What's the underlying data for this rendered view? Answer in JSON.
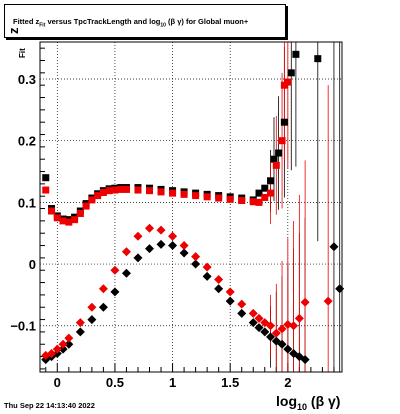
{
  "header": {
    "title_prefix": "Fitted  z",
    "title_sub": "Fit",
    "title_mid": "  versus TpcTrackLength and log",
    "title_sub2": "10",
    "title_suffix": "(β  γ) for Global muon+"
  },
  "footer": {
    "timestamp": "Thu Sep 22 14:13:40 2022"
  },
  "chart_data": {
    "type": "scatter",
    "title": "Fitted z_Fit versus TpcTrackLength and log10(β γ) for Global muon+",
    "xlabel": "log10(β γ)",
    "ylabel": "z_Fit",
    "xlim": [
      -0.15,
      2.47
    ],
    "ylim": [
      -0.175,
      0.36
    ],
    "x_ticks": [
      "0",
      "0.5",
      "1",
      "1.5",
      "2"
    ],
    "y_ticks": [
      "−0.1",
      "0",
      "0.1",
      "0.2",
      "0.3"
    ],
    "grid": true,
    "colors": {
      "black": "#000000",
      "red": "#ee0000"
    },
    "series": [
      {
        "color": "black",
        "band": "upper",
        "x": [
          -0.1,
          -0.05,
          0.0,
          0.05,
          0.1,
          0.15,
          0.2,
          0.25,
          0.3,
          0.35,
          0.4,
          0.45,
          0.5,
          0.55,
          0.6,
          0.7,
          0.8,
          0.9,
          1.0,
          1.1,
          1.2,
          1.3,
          1.4,
          1.5,
          1.6,
          1.7,
          1.75,
          1.8,
          1.85,
          1.88,
          1.92,
          1.97,
          2.03,
          2.07,
          2.26
        ],
        "y": [
          0.14,
          0.09,
          0.078,
          0.073,
          0.072,
          0.076,
          0.086,
          0.098,
          0.107,
          0.114,
          0.119,
          0.122,
          0.123,
          0.124,
          0.124,
          0.124,
          0.123,
          0.121,
          0.119,
          0.117,
          0.115,
          0.113,
          0.111,
          0.109,
          0.107,
          0.104,
          0.115,
          0.123,
          0.135,
          0.17,
          0.18,
          0.23,
          0.31,
          0.34,
          0.333
        ]
      },
      {
        "color": "red",
        "band": "upper",
        "x": [
          -0.1,
          -0.05,
          0.0,
          0.05,
          0.1,
          0.15,
          0.2,
          0.25,
          0.3,
          0.35,
          0.4,
          0.45,
          0.5,
          0.55,
          0.6,
          0.7,
          0.8,
          0.9,
          1.0,
          1.1,
          1.2,
          1.3,
          1.4,
          1.5,
          1.6,
          1.7,
          1.75,
          1.8,
          1.85,
          1.9,
          1.95,
          1.97,
          2.0
        ],
        "y": [
          0.12,
          0.086,
          0.075,
          0.07,
          0.068,
          0.072,
          0.082,
          0.094,
          0.104,
          0.111,
          0.116,
          0.119,
          0.12,
          0.121,
          0.121,
          0.12,
          0.119,
          0.117,
          0.115,
          0.113,
          0.111,
          0.109,
          0.107,
          0.105,
          0.103,
          0.101,
          0.1,
          0.108,
          0.115,
          0.16,
          0.2,
          0.29,
          0.295
        ]
      },
      {
        "color": "black",
        "band": "lower",
        "x": [
          -0.1,
          -0.05,
          0.0,
          0.05,
          0.1,
          0.2,
          0.3,
          0.4,
          0.5,
          0.6,
          0.7,
          0.8,
          0.9,
          1.0,
          1.1,
          1.2,
          1.3,
          1.4,
          1.5,
          1.6,
          1.7,
          1.75,
          1.8,
          1.85,
          1.9,
          1.95,
          2.0,
          2.05,
          2.1,
          2.15,
          2.4,
          2.45
        ],
        "y": [
          -0.155,
          -0.15,
          -0.145,
          -0.138,
          -0.13,
          -0.11,
          -0.09,
          -0.07,
          -0.045,
          -0.015,
          0.01,
          0.025,
          0.032,
          0.03,
          0.018,
          0.0,
          -0.02,
          -0.04,
          -0.06,
          -0.08,
          -0.095,
          -0.103,
          -0.11,
          -0.118,
          -0.125,
          -0.13,
          -0.138,
          -0.145,
          -0.15,
          -0.155,
          0.028,
          -0.04
        ]
      },
      {
        "color": "red",
        "band": "lower",
        "x": [
          -0.1,
          -0.05,
          0.0,
          0.05,
          0.1,
          0.2,
          0.3,
          0.4,
          0.5,
          0.6,
          0.7,
          0.8,
          0.9,
          1.0,
          1.1,
          1.2,
          1.3,
          1.4,
          1.5,
          1.6,
          1.7,
          1.75,
          1.8,
          1.85,
          1.9,
          1.95,
          2.0,
          2.05,
          2.1,
          2.15,
          2.35
        ],
        "y": [
          -0.148,
          -0.145,
          -0.138,
          -0.13,
          -0.12,
          -0.095,
          -0.07,
          -0.04,
          -0.01,
          0.02,
          0.045,
          0.058,
          0.055,
          0.045,
          0.03,
          0.012,
          -0.005,
          -0.025,
          -0.045,
          -0.065,
          -0.08,
          -0.088,
          -0.095,
          -0.1,
          -0.112,
          -0.105,
          -0.098,
          -0.1,
          -0.088,
          -0.062,
          -0.06
        ]
      }
    ]
  }
}
